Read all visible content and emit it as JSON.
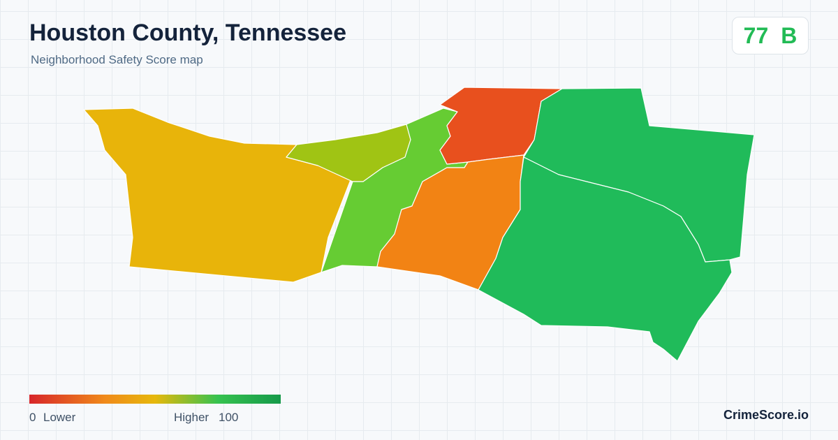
{
  "header": {
    "title": "Houston County, Tennessee",
    "subtitle": "Neighborhood Safety Score map"
  },
  "score": {
    "value": "77",
    "grade": "B"
  },
  "legend": {
    "min": "0",
    "min_label": "Lower",
    "max_label": "Higher",
    "max": "100"
  },
  "brand": "CrimeScore.io"
}
